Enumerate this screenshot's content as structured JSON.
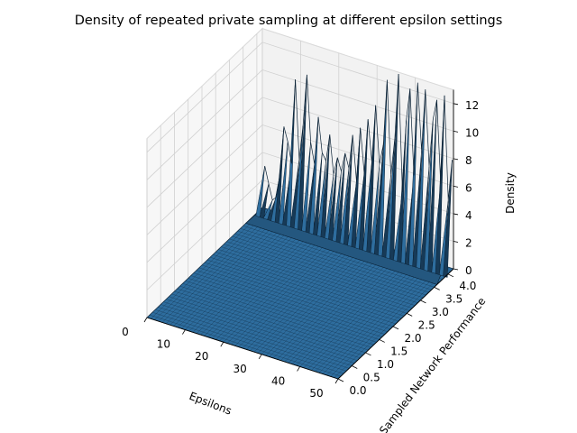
{
  "chart_data": {
    "type": "surface3d",
    "title": "Density of repeated private sampling at different epsilon settings",
    "xlabel": "Epsilons",
    "ylabel": "Sampled Network Performance",
    "zlabel": "Density",
    "xlim": [
      0,
      50
    ],
    "ylim": [
      0.0,
      4.2
    ],
    "zlim": [
      0,
      13
    ],
    "x_ticks": [
      "0",
      "10",
      "20",
      "30",
      "40",
      "50"
    ],
    "y_ticks": [
      "0.0",
      "0.5",
      "1.0",
      "1.5",
      "2.0",
      "2.5",
      "3.0",
      "3.5",
      "4.0"
    ],
    "z_ticks": [
      "0",
      "2",
      "4",
      "6",
      "8",
      "10",
      "12"
    ],
    "grid": true,
    "surface_color": "#2e6d9e",
    "edge_color": "#0b2236",
    "peak_y": 4.15,
    "peak_ridge": [
      {
        "x": 1,
        "z": 3.2
      },
      {
        "x": 2,
        "z": 2.0
      },
      {
        "x": 3,
        "z": 0.9
      },
      {
        "x": 4,
        "z": 1.2
      },
      {
        "x": 5,
        "z": 3.0
      },
      {
        "x": 6,
        "z": 6.5
      },
      {
        "x": 7,
        "z": 5.5
      },
      {
        "x": 8,
        "z": 4.0
      },
      {
        "x": 9,
        "z": 10.2
      },
      {
        "x": 10,
        "z": 4.5
      },
      {
        "x": 11,
        "z": 7.0
      },
      {
        "x": 12,
        "z": 10.8
      },
      {
        "x": 13,
        "z": 6.0
      },
      {
        "x": 14,
        "z": 4.5
      },
      {
        "x": 15,
        "z": 8.0
      },
      {
        "x": 16,
        "z": 5.5
      },
      {
        "x": 17,
        "z": 5.0
      },
      {
        "x": 18,
        "z": 7.0
      },
      {
        "x": 19,
        "z": 4.2
      },
      {
        "x": 20,
        "z": 5.5
      },
      {
        "x": 21,
        "z": 4.6
      },
      {
        "x": 22,
        "z": 6.0
      },
      {
        "x": 23,
        "z": 5.0
      },
      {
        "x": 24,
        "z": 7.5
      },
      {
        "x": 25,
        "z": 4.2
      },
      {
        "x": 26,
        "z": 8.2
      },
      {
        "x": 27,
        "z": 5.0
      },
      {
        "x": 28,
        "z": 9.0
      },
      {
        "x": 29,
        "z": 6.0
      },
      {
        "x": 30,
        "z": 10.2
      },
      {
        "x": 31,
        "z": 6.0
      },
      {
        "x": 32,
        "z": 7.5
      },
      {
        "x": 33,
        "z": 12.3
      },
      {
        "x": 34,
        "z": 5.5
      },
      {
        "x": 35,
        "z": 8.2
      },
      {
        "x": 36,
        "z": 13.0
      },
      {
        "x": 37,
        "z": 4.5
      },
      {
        "x": 38,
        "z": 9.8
      },
      {
        "x": 39,
        "z": 12.2
      },
      {
        "x": 40,
        "z": 6.0
      },
      {
        "x": 41,
        "z": 12.8
      },
      {
        "x": 42,
        "z": 8.0
      },
      {
        "x": 43,
        "z": 12.5
      },
      {
        "x": 44,
        "z": 7.0
      },
      {
        "x": 45,
        "z": 10.5
      },
      {
        "x": 46,
        "z": 12.0
      },
      {
        "x": 47,
        "z": 6.0
      },
      {
        "x": 48,
        "z": 12.5
      },
      {
        "x": 49,
        "z": 5.0
      },
      {
        "x": 50,
        "z": 8.0
      }
    ]
  }
}
